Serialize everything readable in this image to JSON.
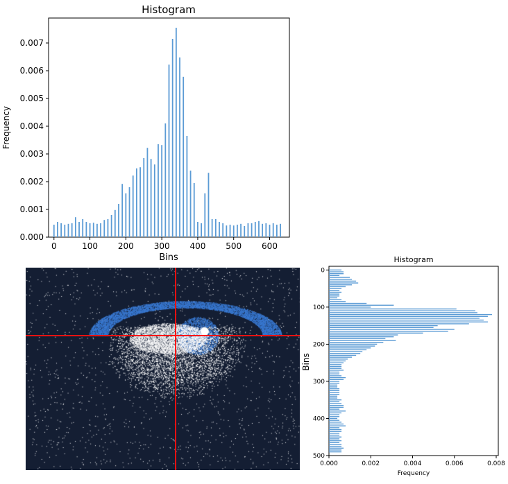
{
  "chart_data": [
    {
      "type": "bar",
      "orientation": "vertical",
      "title": "Histogram",
      "xlabel": "Bins",
      "ylabel": "Frequency",
      "xlim": [
        -15,
        655
      ],
      "ylim": [
        0,
        0.0079
      ],
      "xticks": [
        0,
        100,
        200,
        300,
        400,
        500,
        600
      ],
      "yticks": [
        0.0,
        0.001,
        0.002,
        0.003,
        0.004,
        0.005,
        0.006,
        0.007
      ],
      "ytick_labels": [
        "0.000",
        "0.001",
        "0.002",
        "0.003",
        "0.004",
        "0.005",
        "0.006",
        "0.007"
      ],
      "bar_color": "#5b9bd5",
      "x": [
        0,
        10,
        20,
        30,
        40,
        50,
        60,
        70,
        80,
        90,
        100,
        110,
        120,
        130,
        140,
        150,
        160,
        170,
        180,
        190,
        200,
        210,
        220,
        230,
        240,
        250,
        260,
        270,
        280,
        290,
        300,
        310,
        320,
        330,
        340,
        350,
        360,
        370,
        380,
        390,
        400,
        410,
        420,
        430,
        440,
        450,
        460,
        470,
        480,
        490,
        500,
        510,
        520,
        530,
        540,
        550,
        560,
        570,
        580,
        590,
        600,
        610,
        620,
        630
      ],
      "values": [
        0.00045,
        0.00055,
        0.0005,
        0.00045,
        0.00048,
        0.0005,
        0.00072,
        0.00055,
        0.00065,
        0.00055,
        0.0005,
        0.00052,
        0.00048,
        0.0005,
        0.00062,
        0.00065,
        0.0008,
        0.00098,
        0.0012,
        0.00192,
        0.00158,
        0.0018,
        0.00222,
        0.00248,
        0.00252,
        0.00285,
        0.00322,
        0.00282,
        0.00262,
        0.00335,
        0.00332,
        0.0041,
        0.00622,
        0.00715,
        0.00755,
        0.00648,
        0.00578,
        0.00365,
        0.0024,
        0.00195,
        0.00055,
        0.0005,
        0.00158,
        0.00232,
        0.00065,
        0.00065,
        0.00055,
        0.0005,
        0.00042,
        0.00045,
        0.00042,
        0.00045,
        0.00048,
        0.0004,
        0.0005,
        0.0005,
        0.00055,
        0.00058,
        0.00048,
        0.0005,
        0.00045,
        0.0005,
        0.00045,
        0.00048
      ]
    },
    {
      "type": "bar",
      "orientation": "horizontal",
      "title": "Histogram",
      "xlabel": "Frequency",
      "ylabel": "Bins",
      "xlim": [
        0,
        0.0081
      ],
      "ylim": [
        500,
        -10
      ],
      "xticks": [
        0.0,
        0.002,
        0.004,
        0.006,
        0.008
      ],
      "xtick_labels": [
        "0.000",
        "0.002",
        "0.004",
        "0.006",
        "0.008"
      ],
      "yticks": [
        0,
        100,
        200,
        300,
        400,
        500
      ],
      "bar_color": "#5b9bd5",
      "bins": [
        0,
        5,
        10,
        15,
        20,
        25,
        30,
        35,
        40,
        45,
        50,
        55,
        60,
        65,
        70,
        75,
        80,
        85,
        90,
        95,
        100,
        105,
        110,
        115,
        120,
        125,
        130,
        135,
        140,
        145,
        150,
        155,
        160,
        165,
        170,
        175,
        180,
        185,
        190,
        195,
        200,
        205,
        210,
        215,
        220,
        225,
        230,
        235,
        240,
        245,
        250,
        255,
        260,
        265,
        270,
        275,
        280,
        285,
        290,
        295,
        300,
        305,
        310,
        315,
        320,
        325,
        330,
        335,
        340,
        345,
        350,
        355,
        360,
        365,
        370,
        375,
        380,
        385,
        390,
        395,
        400,
        405,
        410,
        415,
        420,
        425,
        430,
        435,
        440,
        445,
        450,
        455,
        460,
        465,
        470,
        475,
        480,
        485,
        490
      ],
      "values": [
        0.0006,
        0.0007,
        0.0007,
        0.0005,
        0.001,
        0.0011,
        0.0013,
        0.0014,
        0.0011,
        0.0008,
        0.0006,
        0.0005,
        0.0006,
        0.0005,
        0.0005,
        0.0004,
        0.0006,
        0.0008,
        0.0018,
        0.0031,
        0.002,
        0.0061,
        0.007,
        0.0071,
        0.0078,
        0.0076,
        0.0072,
        0.0074,
        0.0076,
        0.0067,
        0.0052,
        0.005,
        0.006,
        0.0057,
        0.0045,
        0.0033,
        0.0031,
        0.0027,
        0.0032,
        0.0026,
        0.0023,
        0.0022,
        0.002,
        0.0018,
        0.0016,
        0.0015,
        0.0013,
        0.0011,
        0.0009,
        0.0008,
        0.0007,
        0.0006,
        0.0006,
        0.0006,
        0.0007,
        0.0005,
        0.0005,
        0.0006,
        0.0008,
        0.0007,
        0.0005,
        0.0005,
        0.0004,
        0.0004,
        0.0005,
        0.0005,
        0.0005,
        0.0005,
        0.0004,
        0.0004,
        0.0006,
        0.0005,
        0.0006,
        0.0007,
        0.0007,
        0.0005,
        0.0008,
        0.0006,
        0.0005,
        0.0005,
        0.0004,
        0.0005,
        0.0006,
        0.0007,
        0.0008,
        0.0005,
        0.0006,
        0.0006,
        0.0005,
        0.0005,
        0.0006,
        0.0005,
        0.0006,
        0.0005,
        0.0006,
        0.0006,
        0.0007,
        0.0006,
        0.0006
      ]
    }
  ],
  "image_panel": {
    "background_color": "#141e33",
    "highlight_color": "#3a7bd5",
    "speckle_color": "#ffffff",
    "crosshair_color": "#ff1111"
  }
}
